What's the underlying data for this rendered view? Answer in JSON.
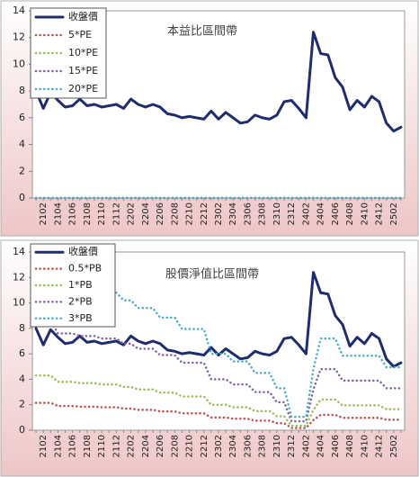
{
  "chart_data": [
    {
      "type": "line",
      "title": "本益比區間帶",
      "categories": [
        null,
        "2102",
        null,
        "2104",
        null,
        "2106",
        null,
        "2108",
        null,
        "2110",
        null,
        "2112",
        null,
        "2202",
        null,
        "2204",
        null,
        "2206",
        null,
        "2208",
        null,
        "2210",
        null,
        "2212",
        null,
        "2302",
        null,
        "2304",
        null,
        "2306",
        null,
        "2308",
        null,
        "2310",
        null,
        "2312",
        null,
        "2402",
        null,
        "2404",
        null,
        "2406",
        null,
        "2408",
        null,
        "2410",
        null,
        "2412",
        null,
        "2502",
        null
      ],
      "ylim": [
        0,
        14
      ],
      "yticks": [
        0,
        2,
        4,
        6,
        8,
        10,
        12,
        14
      ],
      "legend": "upper left",
      "series": [
        {
          "name": "收盤價",
          "color": "#1f2d6e",
          "style": "solid",
          "values": [
            8.0,
            6.7,
            7.9,
            7.3,
            6.8,
            6.9,
            7.4,
            6.9,
            7.0,
            6.8,
            6.9,
            7.0,
            6.7,
            7.4,
            7.0,
            6.8,
            7.0,
            6.8,
            6.3,
            6.2,
            6.0,
            6.1,
            6.0,
            5.9,
            6.5,
            5.9,
            6.4,
            6.0,
            5.6,
            5.7,
            6.2,
            6.0,
            5.9,
            6.2,
            7.2,
            7.3,
            6.7,
            6.0,
            12.4,
            10.8,
            10.7,
            9.0,
            8.3,
            6.6,
            7.3,
            6.8,
            7.6,
            7.2,
            5.6,
            5.0,
            5.3
          ]
        },
        {
          "name": "5*PE",
          "color": "#c0504d",
          "style": "dotted",
          "values": [
            0,
            0,
            0,
            0,
            0,
            0,
            0,
            0,
            0,
            0,
            0,
            0,
            0,
            0,
            0,
            0,
            0,
            0,
            0,
            0,
            0,
            0,
            0,
            0,
            0,
            0,
            0,
            0,
            0,
            0,
            0,
            0,
            0,
            0,
            0,
            0,
            0,
            0,
            0,
            0,
            0,
            0,
            0,
            0,
            0,
            0,
            0,
            0,
            0,
            0,
            0
          ]
        },
        {
          "name": "10*PE",
          "color": "#9bbb59",
          "style": "dotted",
          "values": [
            0,
            0,
            0,
            0,
            0,
            0,
            0,
            0,
            0,
            0,
            0,
            0,
            0,
            0,
            0,
            0,
            0,
            0,
            0,
            0,
            0,
            0,
            0,
            0,
            0,
            0,
            0,
            0,
            0,
            0,
            0,
            0,
            0,
            0,
            0,
            0,
            0,
            0,
            0,
            0,
            0,
            0,
            0,
            0,
            0,
            0,
            0,
            0,
            0,
            0,
            0
          ]
        },
        {
          "name": "15*PE",
          "color": "#8064a2",
          "style": "dotted",
          "values": [
            0,
            0,
            0,
            0,
            0,
            0,
            0,
            0,
            0,
            0,
            0,
            0,
            0,
            0,
            0,
            0,
            0,
            0,
            0,
            0,
            0,
            0,
            0,
            0,
            0,
            0,
            0,
            0,
            0,
            0,
            0,
            0,
            0,
            0,
            0,
            0,
            0,
            0,
            0,
            0,
            0,
            0,
            0,
            0,
            0,
            0,
            0,
            0,
            0,
            0,
            0
          ]
        },
        {
          "name": "20*PE",
          "color": "#4bacc6",
          "style": "dotted",
          "values": [
            0,
            0,
            0,
            0,
            0,
            0,
            0,
            0,
            0,
            0,
            0,
            0,
            0,
            0,
            0,
            0,
            0,
            0,
            0,
            0,
            0,
            0,
            0,
            0,
            0,
            0,
            0,
            0,
            0,
            0,
            0,
            0,
            0,
            0,
            0,
            0,
            0,
            0,
            0,
            0,
            0,
            0,
            0,
            0,
            0,
            0,
            0,
            0,
            0,
            0,
            0
          ]
        }
      ]
    },
    {
      "type": "line",
      "title": "股價淨值比區間帶",
      "categories": [
        null,
        "2102",
        null,
        "2104",
        null,
        "2106",
        null,
        "2108",
        null,
        "2110",
        null,
        "2112",
        null,
        "2202",
        null,
        "2204",
        null,
        "2206",
        null,
        "2208",
        null,
        "2210",
        null,
        "2212",
        null,
        "2302",
        null,
        "2304",
        null,
        "2306",
        null,
        "2308",
        null,
        "2310",
        null,
        "2312",
        null,
        "2402",
        null,
        "2404",
        null,
        "2406",
        null,
        "2408",
        null,
        "2410",
        null,
        "2412",
        null,
        "2502",
        null
      ],
      "ylim": [
        0,
        14
      ],
      "yticks": [
        0,
        2,
        4,
        6,
        8,
        10,
        12,
        14
      ],
      "legend": "upper left",
      "series": [
        {
          "name": "收盤價",
          "color": "#1f2d6e",
          "style": "solid",
          "values": [
            8.0,
            6.7,
            7.9,
            7.3,
            6.8,
            6.9,
            7.4,
            6.9,
            7.0,
            6.8,
            6.9,
            7.0,
            6.7,
            7.4,
            7.0,
            6.8,
            7.0,
            6.8,
            6.3,
            6.2,
            6.0,
            6.1,
            6.0,
            5.9,
            6.5,
            5.9,
            6.4,
            6.0,
            5.6,
            5.7,
            6.2,
            6.0,
            5.9,
            6.2,
            7.2,
            7.3,
            6.7,
            6.0,
            12.4,
            10.8,
            10.7,
            9.0,
            8.3,
            6.6,
            7.3,
            6.8,
            7.6,
            7.2,
            5.6,
            5.0,
            5.3
          ]
        },
        {
          "name": "0.5*PB",
          "color": "#c0504d",
          "style": "dotted",
          "values": [
            2.15,
            2.15,
            2.15,
            1.9,
            1.9,
            1.9,
            1.85,
            1.85,
            1.85,
            1.8,
            1.8,
            1.8,
            1.7,
            1.7,
            1.6,
            1.6,
            1.6,
            1.475,
            1.475,
            1.475,
            1.325,
            1.325,
            1.325,
            1.325,
            1.0,
            1.0,
            1.0,
            0.9,
            0.9,
            0.9,
            0.75,
            0.75,
            0.75,
            0.55,
            0.55,
            0.175,
            0.175,
            0.175,
            0.8,
            1.2,
            1.2,
            1.2,
            0.975,
            0.975,
            0.975,
            0.975,
            0.975,
            0.975,
            0.825,
            0.825,
            0.825
          ]
        },
        {
          "name": "1*PB",
          "color": "#9bbb59",
          "style": "dotted",
          "values": [
            4.3,
            4.3,
            4.3,
            3.8,
            3.8,
            3.8,
            3.7,
            3.7,
            3.7,
            3.6,
            3.6,
            3.6,
            3.4,
            3.4,
            3.2,
            3.2,
            3.2,
            2.95,
            2.95,
            2.95,
            2.65,
            2.65,
            2.65,
            2.65,
            2.0,
            2.0,
            2.0,
            1.8,
            1.8,
            1.8,
            1.5,
            1.5,
            1.5,
            1.1,
            1.1,
            0.35,
            0.35,
            0.35,
            1.6,
            2.4,
            2.4,
            2.4,
            1.95,
            1.95,
            1.95,
            1.95,
            1.95,
            1.95,
            1.65,
            1.65,
            1.65
          ]
        },
        {
          "name": "2*PB",
          "color": "#8064a2",
          "style": "dotted",
          "values": [
            8.6,
            8.6,
            8.6,
            7.6,
            7.6,
            7.6,
            7.4,
            7.4,
            7.4,
            7.2,
            7.2,
            7.2,
            6.8,
            6.8,
            6.4,
            6.4,
            6.4,
            5.9,
            5.9,
            5.9,
            5.3,
            5.3,
            5.3,
            5.3,
            4.0,
            4.0,
            4.0,
            3.6,
            3.6,
            3.6,
            3.0,
            3.0,
            3.0,
            2.2,
            2.2,
            0.7,
            0.7,
            0.7,
            3.2,
            4.8,
            4.8,
            4.8,
            3.9,
            3.9,
            3.9,
            3.9,
            3.9,
            3.9,
            3.3,
            3.3,
            3.3
          ]
        },
        {
          "name": "3*PB",
          "color": "#4bacc6",
          "style": "dotted",
          "values": [
            12.9,
            12.9,
            12.9,
            11.4,
            11.4,
            11.4,
            11.1,
            11.1,
            11.1,
            10.8,
            10.8,
            10.8,
            10.2,
            10.2,
            9.6,
            9.6,
            9.6,
            8.85,
            8.85,
            8.85,
            7.95,
            7.95,
            7.95,
            7.95,
            6.0,
            6.0,
            6.0,
            5.4,
            5.4,
            5.4,
            4.5,
            4.5,
            4.5,
            3.3,
            3.3,
            1.05,
            1.05,
            1.05,
            4.8,
            7.2,
            7.2,
            7.2,
            5.85,
            5.85,
            5.85,
            5.85,
            5.85,
            5.85,
            4.95,
            4.95,
            4.95
          ]
        }
      ]
    }
  ]
}
